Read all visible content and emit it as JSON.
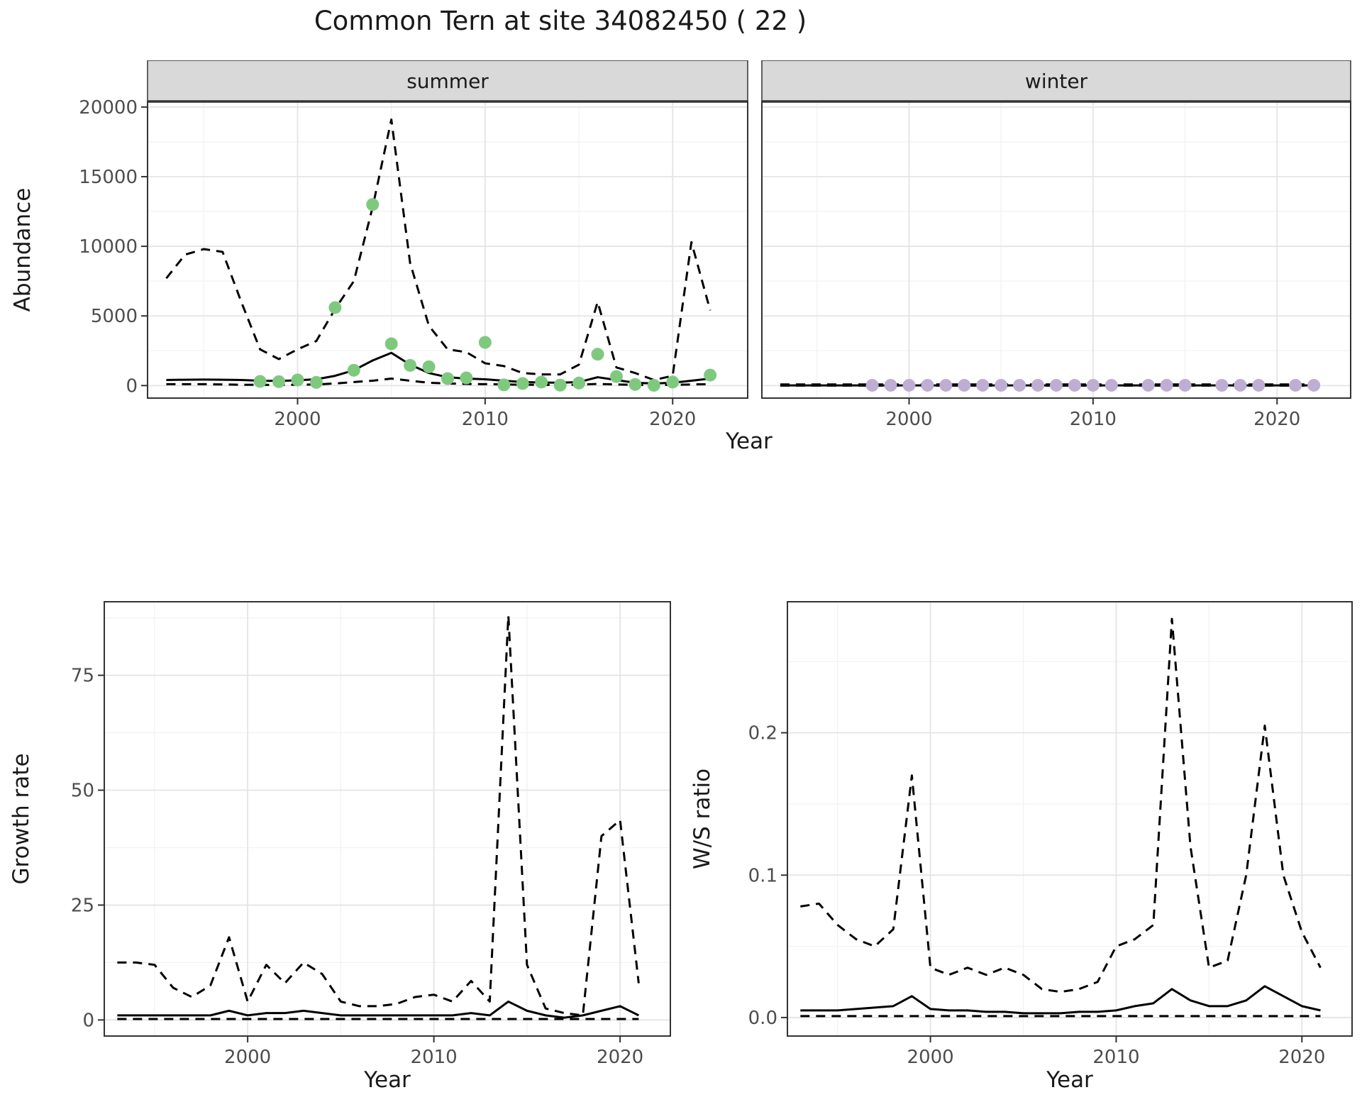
{
  "title": "Common Tern at site 34082450 ( 22 )",
  "colors": {
    "summer_points": "#7FC97F",
    "winter_points": "#BEAED4",
    "line": "#000000",
    "strip_bg": "#D9D9D9",
    "grid_major": "#E4E4E4",
    "grid_minor": "#F2F2F2",
    "panel_border": "#333333",
    "tick_text": "#4D4D4D"
  },
  "chart_data": [
    {
      "type": "line",
      "facet": "summer",
      "xlabel": "Year",
      "ylabel": "Abundance",
      "xlim": [
        1992,
        2024
      ],
      "ylim": [
        -900,
        20400
      ],
      "xticks": [
        2000,
        2010,
        2020
      ],
      "xtick_labels": [
        "2000",
        "2010",
        "2020"
      ],
      "yticks": [
        0,
        5000,
        10000,
        15000,
        20000
      ],
      "ytick_labels": [
        "0",
        "5000",
        "10000",
        "15000",
        "20000"
      ],
      "grid": true,
      "legend": "none",
      "x": [
        1993,
        1994,
        1995,
        1996,
        1997,
        1998,
        1999,
        2000,
        2001,
        2002,
        2003,
        2004,
        2005,
        2006,
        2007,
        2008,
        2009,
        2010,
        2011,
        2012,
        2013,
        2014,
        2015,
        2016,
        2017,
        2018,
        2019,
        2020,
        2021,
        2022
      ],
      "series": [
        {
          "name": "upper-ci",
          "kind": "line",
          "style": "dashed",
          "y": [
            7700,
            9400,
            9800,
            9600,
            6000,
            2600,
            1900,
            2600,
            3200,
            5500,
            7500,
            12800,
            19100,
            8800,
            4300,
            2600,
            2400,
            1600,
            1400,
            900,
            800,
            800,
            1500,
            6000,
            1300,
            900,
            400,
            700,
            10300,
            5400
          ]
        },
        {
          "name": "median",
          "kind": "line",
          "style": "solid",
          "y": [
            400,
            420,
            430,
            420,
            400,
            350,
            330,
            380,
            450,
            700,
            1100,
            1800,
            2350,
            1500,
            900,
            600,
            500,
            450,
            350,
            250,
            220,
            200,
            250,
            600,
            400,
            200,
            150,
            200,
            350,
            500
          ]
        },
        {
          "name": "lower-ci",
          "kind": "line",
          "style": "dashed",
          "y": [
            100,
            100,
            100,
            80,
            60,
            50,
            50,
            60,
            80,
            150,
            250,
            350,
            500,
            350,
            200,
            150,
            120,
            100,
            80,
            60,
            50,
            50,
            60,
            120,
            80,
            50,
            40,
            50,
            80,
            100
          ]
        },
        {
          "name": "observed-count",
          "kind": "points",
          "color_key": "summer_points",
          "x": [
            1998,
            1999,
            2000,
            2001,
            2002,
            2003,
            2004,
            2005,
            2006,
            2007,
            2008,
            2009,
            2010,
            2011,
            2012,
            2013,
            2014,
            2015,
            2016,
            2017,
            2018,
            2019,
            2020,
            2022
          ],
          "y": [
            300,
            280,
            400,
            230,
            5600,
            1100,
            13000,
            3000,
            1450,
            1350,
            500,
            550,
            3100,
            50,
            150,
            250,
            30,
            180,
            2250,
            650,
            80,
            20,
            250,
            750
          ]
        }
      ]
    },
    {
      "type": "line",
      "facet": "winter",
      "xlabel": "Year",
      "ylabel": "Abundance",
      "xlim": [
        1992,
        2024
      ],
      "ylim": [
        -900,
        20400
      ],
      "xticks": [
        2000,
        2010,
        2020
      ],
      "xtick_labels": [
        "2000",
        "2010",
        "2020"
      ],
      "yticks": [
        0,
        5000,
        10000,
        15000,
        20000
      ],
      "ytick_labels": [
        "0",
        "5000",
        "10000",
        "15000",
        "20000"
      ],
      "grid": true,
      "legend": "none",
      "x": [
        1993,
        1994,
        1995,
        1996,
        1997,
        1998,
        1999,
        2000,
        2001,
        2002,
        2003,
        2004,
        2005,
        2006,
        2007,
        2008,
        2009,
        2010,
        2011,
        2012,
        2013,
        2014,
        2015,
        2016,
        2017,
        2018,
        2019,
        2020,
        2021,
        2022
      ],
      "series": [
        {
          "name": "upper-ci",
          "kind": "line",
          "style": "dashed",
          "y": [
            80,
            80,
            80,
            80,
            80,
            80,
            80,
            80,
            80,
            80,
            80,
            80,
            80,
            80,
            80,
            80,
            80,
            80,
            80,
            80,
            80,
            80,
            80,
            80,
            80,
            80,
            80,
            80,
            80,
            80
          ]
        },
        {
          "name": "median",
          "kind": "line",
          "style": "solid",
          "y": [
            10,
            10,
            10,
            10,
            10,
            10,
            10,
            10,
            10,
            10,
            10,
            10,
            10,
            10,
            10,
            10,
            10,
            10,
            10,
            10,
            10,
            10,
            10,
            10,
            10,
            10,
            10,
            10,
            10,
            10
          ]
        },
        {
          "name": "lower-ci",
          "kind": "line",
          "style": "dashed",
          "y": [
            0,
            0,
            0,
            0,
            0,
            0,
            0,
            0,
            0,
            0,
            0,
            0,
            0,
            0,
            0,
            0,
            0,
            0,
            0,
            0,
            0,
            0,
            0,
            0,
            0,
            0,
            0,
            0,
            0,
            0
          ]
        },
        {
          "name": "observed-count",
          "kind": "points",
          "color_key": "winter_points",
          "x": [
            1998,
            1999,
            2000,
            2001,
            2002,
            2003,
            2004,
            2005,
            2006,
            2007,
            2008,
            2009,
            2010,
            2011,
            2013,
            2014,
            2015,
            2017,
            2018,
            2019,
            2021,
            2022
          ],
          "y": [
            20,
            20,
            20,
            20,
            20,
            20,
            20,
            20,
            20,
            20,
            20,
            20,
            20,
            20,
            20,
            20,
            20,
            20,
            20,
            20,
            20,
            20
          ]
        }
      ]
    },
    {
      "type": "line",
      "facet": "",
      "xlabel": "Year",
      "ylabel": "Growth rate",
      "xlim": [
        1992.3,
        2022.7
      ],
      "ylim": [
        -3.5,
        91
      ],
      "xticks": [
        2000,
        2010,
        2020
      ],
      "xtick_labels": [
        "2000",
        "2010",
        "2020"
      ],
      "yticks": [
        0,
        25,
        50,
        75
      ],
      "ytick_labels": [
        "0",
        "25",
        "50",
        "75"
      ],
      "grid": true,
      "legend": "none",
      "x": [
        1993,
        1994,
        1995,
        1996,
        1997,
        1998,
        1999,
        2000,
        2001,
        2002,
        2003,
        2004,
        2005,
        2006,
        2007,
        2008,
        2009,
        2010,
        2011,
        2012,
        2013,
        2014,
        2015,
        2016,
        2017,
        2018,
        2019,
        2020,
        2021
      ],
      "series": [
        {
          "name": "upper-ci",
          "kind": "line",
          "style": "dashed",
          "y": [
            12.5,
            12.5,
            12,
            7,
            5,
            7.5,
            18,
            4,
            12,
            8,
            12.5,
            10,
            4,
            3,
            3,
            3.5,
            5,
            5.5,
            4,
            8.5,
            4,
            88,
            12,
            2.5,
            1.5,
            1,
            40,
            43.5,
            8
          ]
        },
        {
          "name": "median",
          "kind": "line",
          "style": "solid",
          "y": [
            1,
            1,
            1,
            1,
            1,
            1,
            2,
            1,
            1.5,
            1.5,
            2,
            1.5,
            1,
            1,
            1,
            1,
            1,
            1,
            1,
            1.5,
            1,
            4,
            2,
            1,
            0.5,
            1,
            2,
            3,
            1
          ]
        },
        {
          "name": "lower-ci",
          "kind": "line",
          "style": "dashed",
          "y": [
            0.2,
            0.2,
            0.2,
            0.2,
            0.2,
            0.2,
            0.2,
            0.2,
            0.2,
            0.2,
            0.2,
            0.2,
            0.2,
            0.2,
            0.2,
            0.2,
            0.2,
            0.2,
            0.2,
            0.2,
            0.2,
            0.2,
            0.2,
            0.2,
            0.2,
            0.2,
            0.2,
            0.2,
            0.2
          ]
        }
      ]
    },
    {
      "type": "line",
      "facet": "",
      "xlabel": "Year",
      "ylabel": "W/S ratio",
      "xlim": [
        1992.3,
        2022.7
      ],
      "ylim": [
        -0.013,
        0.292
      ],
      "xticks": [
        2000,
        2010,
        2020
      ],
      "xtick_labels": [
        "2000",
        "2010",
        "2020"
      ],
      "yticks": [
        0,
        0.1,
        0.2
      ],
      "ytick_labels": [
        "0.0",
        "0.1",
        "0.2"
      ],
      "grid": true,
      "legend": "none",
      "x": [
        1993,
        1994,
        1995,
        1996,
        1997,
        1998,
        1999,
        2000,
        2001,
        2002,
        2003,
        2004,
        2005,
        2006,
        2007,
        2008,
        2009,
        2010,
        2011,
        2012,
        2013,
        2014,
        2015,
        2016,
        2017,
        2018,
        2019,
        2020,
        2021
      ],
      "series": [
        {
          "name": "upper-ci",
          "kind": "line",
          "style": "dashed",
          "y": [
            0.078,
            0.08,
            0.065,
            0.055,
            0.05,
            0.062,
            0.17,
            0.035,
            0.03,
            0.035,
            0.03,
            0.035,
            0.03,
            0.02,
            0.018,
            0.02,
            0.025,
            0.05,
            0.055,
            0.065,
            0.28,
            0.12,
            0.035,
            0.04,
            0.1,
            0.205,
            0.1,
            0.06,
            0.035
          ]
        },
        {
          "name": "median",
          "kind": "line",
          "style": "solid",
          "y": [
            0.005,
            0.005,
            0.005,
            0.006,
            0.007,
            0.008,
            0.015,
            0.006,
            0.005,
            0.005,
            0.004,
            0.004,
            0.003,
            0.003,
            0.003,
            0.004,
            0.004,
            0.005,
            0.008,
            0.01,
            0.02,
            0.012,
            0.008,
            0.008,
            0.012,
            0.022,
            0.015,
            0.008,
            0.005
          ]
        },
        {
          "name": "lower-ci",
          "kind": "line",
          "style": "dashed",
          "y": [
            0.001,
            0.001,
            0.001,
            0.001,
            0.001,
            0.001,
            0.001,
            0.001,
            0.001,
            0.001,
            0.001,
            0.001,
            0.001,
            0.001,
            0.001,
            0.001,
            0.001,
            0.001,
            0.001,
            0.001,
            0.001,
            0.001,
            0.001,
            0.001,
            0.001,
            0.001,
            0.001,
            0.001,
            0.001
          ]
        }
      ]
    }
  ]
}
